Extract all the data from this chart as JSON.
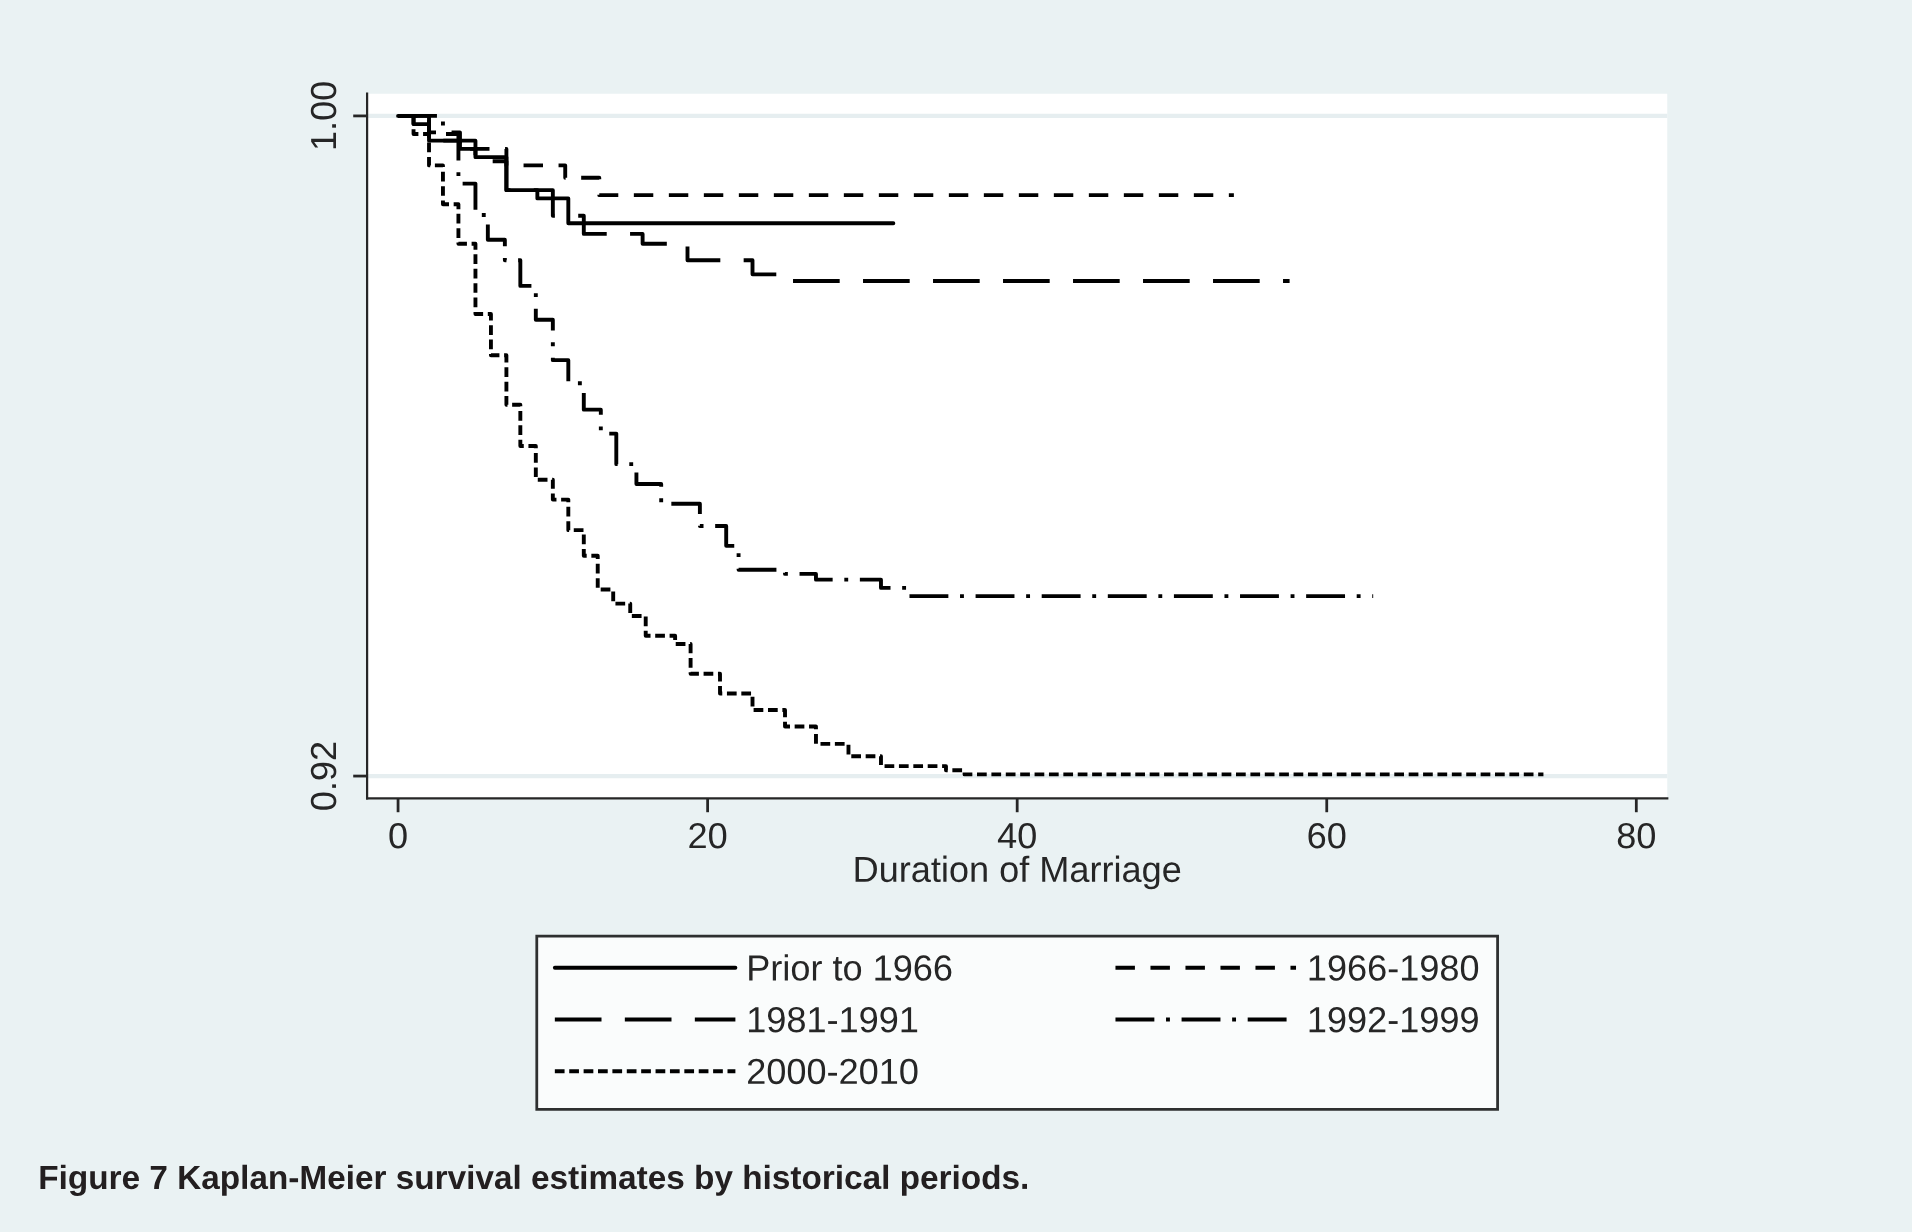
{
  "chart_data": {
    "type": "step",
    "xlabel": "Duration of Marriage",
    "xlim": [
      -2,
      82
    ],
    "xticks": [
      0,
      20,
      40,
      60,
      80
    ],
    "ylim": [
      0.9173,
      1.0027
    ],
    "yticks": [
      {
        "value": 0.92,
        "label": "0.92"
      },
      {
        "value": 1.0,
        "label": "1.00"
      }
    ],
    "grid": "y",
    "legend": "bottom",
    "annotations": [
      "Figure 7 Kaplan-Meier survival estimates by historical periods."
    ],
    "series": [
      {
        "name": "Prior to 1966",
        "color": "#000000",
        "line_style": "solid",
        "x": [
          0,
          1,
          2,
          4,
          5,
          7,
          9,
          11,
          32
        ],
        "values": [
          1.0,
          0.999,
          0.997,
          0.996,
          0.995,
          0.991,
          0.99,
          0.987,
          0.987
        ]
      },
      {
        "name": "1966-1980",
        "color": "#000000",
        "line_style": "dashed",
        "x": [
          0,
          2,
          4,
          7,
          10.8,
          13,
          54
        ],
        "values": [
          1.0,
          0.998,
          0.996,
          0.994,
          0.9925,
          0.9904,
          0.9904
        ]
      },
      {
        "name": "1981-1991",
        "color": "#000000",
        "line_style": "longdash",
        "x": [
          0,
          2,
          5,
          7,
          10,
          12,
          15.8,
          18.7,
          22.9,
          25,
          57.6
        ],
        "values": [
          1.0,
          0.997,
          0.9945,
          0.991,
          0.9879,
          0.9857,
          0.9845,
          0.9825,
          0.9808,
          0.98,
          0.98
        ]
      },
      {
        "name": "1992-1999",
        "color": "#000000",
        "line_style": "dashdot",
        "x": [
          0,
          2.9,
          3.9,
          5,
          5.8,
          6.9,
          7.9,
          8.9,
          10,
          11,
          12,
          13.1,
          14.1,
          15.4,
          17,
          19.5,
          21.2,
          22,
          25,
          27,
          31.2,
          32.9,
          63
        ],
        "values": [
          1.0,
          0.9978,
          0.9918,
          0.988,
          0.985,
          0.9825,
          0.9794,
          0.9753,
          0.9704,
          0.9676,
          0.9644,
          0.9615,
          0.9578,
          0.9554,
          0.953,
          0.9503,
          0.9479,
          0.945,
          0.9445,
          0.9438,
          0.9428,
          0.9418,
          0.9418
        ]
      },
      {
        "name": "2000-2010",
        "color": "#000000",
        "line_style": "dotted",
        "x": [
          0,
          1,
          2,
          2.9,
          3.9,
          5,
          6,
          7,
          7.9,
          8.9,
          10,
          11,
          12,
          12.9,
          13.9,
          15,
          16,
          17.9,
          18.9,
          20.8,
          22.9,
          25,
          27,
          29.1,
          31.2,
          35.4,
          36.6,
          74
        ],
        "values": [
          1.0,
          0.9978,
          0.994,
          0.9893,
          0.9845,
          0.976,
          0.971,
          0.965,
          0.96,
          0.9559,
          0.9535,
          0.9498,
          0.9467,
          0.9426,
          0.9409,
          0.9394,
          0.937,
          0.936,
          0.9324,
          0.93,
          0.928,
          0.926,
          0.9239,
          0.9224,
          0.9212,
          0.9207,
          0.9202,
          0.9202
        ]
      }
    ]
  }
}
